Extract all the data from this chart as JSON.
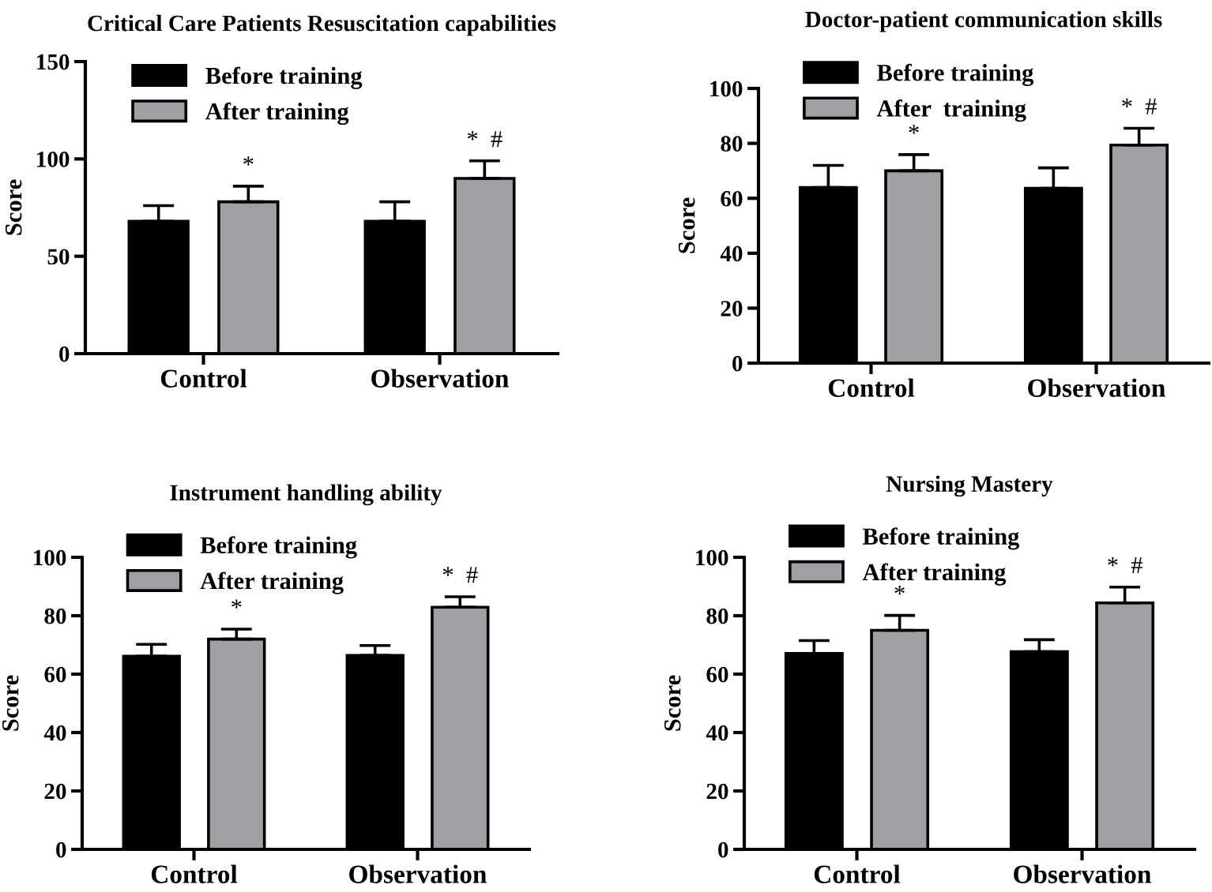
{
  "chart_data": [
    {
      "type": "bar",
      "title": "Critical Care Patients Resuscitation capabilities",
      "ylabel": "Score",
      "categories": [
        "Control",
        "Observation"
      ],
      "ylim": [
        0,
        150
      ],
      "yticks": [
        0,
        50,
        100,
        150
      ],
      "legend": "top left",
      "grid": false,
      "series": [
        {
          "name": "Before training",
          "color": "#000000",
          "values": [
            68,
            68
          ],
          "errors": [
            [
              68,
              76
            ],
            [
              68,
              78
            ]
          ]
        },
        {
          "name": "After training",
          "color": "#a0a0a4",
          "values": [
            78,
            90
          ],
          "errors": [
            [
              78,
              86
            ],
            [
              90,
              99
            ]
          ]
        }
      ],
      "annotations": [
        "*",
        "*  #"
      ]
    },
    {
      "type": "bar",
      "title": "Doctor-patient communication skills",
      "ylabel": "Score",
      "categories": [
        "Control",
        "Observation"
      ],
      "ylim": [
        0,
        100
      ],
      "yticks": [
        0,
        20,
        40,
        60,
        80,
        100
      ],
      "legend": "top left",
      "grid": false,
      "series": [
        {
          "name": "Before training",
          "color": "#000000",
          "values": [
            63.9,
            63.6
          ],
          "errors": [
            [
              63.9,
              72
            ],
            [
              63.6,
              71.1
            ]
          ]
        },
        {
          "name": "After  training",
          "color": "#a0a0a4",
          "values": [
            70,
            79.4
          ],
          "errors": [
            [
              70,
              75.9
            ],
            [
              79.4,
              85.5
            ]
          ]
        }
      ],
      "annotations": [
        "*",
        "*  #"
      ]
    },
    {
      "type": "bar",
      "title": "Instrument handling ability",
      "ylabel": "Score",
      "categories": [
        "Control",
        "Observation"
      ],
      "ylim": [
        0,
        100
      ],
      "yticks": [
        0,
        20,
        40,
        60,
        80,
        100
      ],
      "legend": "top left",
      "grid": false,
      "series": [
        {
          "name": "Before training",
          "color": "#000000",
          "values": [
            66.1,
            66.4
          ],
          "errors": [
            [
              66.1,
              70.2
            ],
            [
              66.4,
              69.8
            ]
          ]
        },
        {
          "name": "After training",
          "color": "#a0a0a4",
          "values": [
            72,
            82.9
          ],
          "errors": [
            [
              72,
              75.4
            ],
            [
              82.9,
              86.5
            ]
          ]
        }
      ],
      "annotations": [
        "*",
        "*  #"
      ]
    },
    {
      "type": "bar",
      "title": "Nursing Mastery",
      "ylabel": "Score",
      "categories": [
        "Control",
        "Observation"
      ],
      "ylim": [
        0,
        100
      ],
      "yticks": [
        0,
        20,
        40,
        60,
        80,
        100
      ],
      "legend": "top left",
      "grid": false,
      "series": [
        {
          "name": "Before training",
          "color": "#000000",
          "values": [
            67.1,
            67.7
          ],
          "errors": [
            [
              67.1,
              71.5
            ],
            [
              67.7,
              71.8
            ]
          ]
        },
        {
          "name": "After training",
          "color": "#a0a0a4",
          "values": [
            75,
            84.4
          ],
          "errors": [
            [
              75,
              80.1
            ],
            [
              84.4,
              89.8
            ]
          ]
        }
      ],
      "annotations": [
        "*",
        "*  #"
      ]
    }
  ]
}
